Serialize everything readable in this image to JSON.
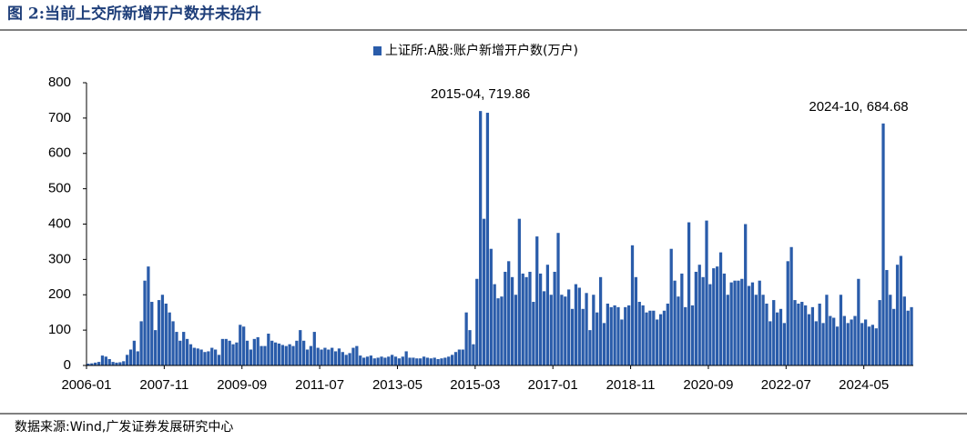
{
  "chart_data": {
    "type": "bar",
    "title": "图 2:当前上交所新增开户数并未抬升",
    "source": "数据来源:Wind,广发证券发展研究中心",
    "series": [
      {
        "name": "上证所:A股:账户新增开户数(万户)",
        "color": "#2a5caa",
        "values": [
          5,
          6,
          8,
          10,
          28,
          25,
          18,
          10,
          8,
          9,
          12,
          30,
          45,
          70,
          40,
          125,
          240,
          280,
          180,
          100,
          185,
          200,
          175,
          150,
          125,
          95,
          70,
          95,
          75,
          60,
          50,
          48,
          45,
          38,
          40,
          50,
          45,
          30,
          75,
          75,
          70,
          60,
          65,
          115,
          110,
          70,
          45,
          75,
          80,
          55,
          55,
          90,
          70,
          65,
          62,
          58,
          55,
          60,
          55,
          70,
          100,
          70,
          45,
          55,
          95,
          50,
          45,
          50,
          45,
          50,
          40,
          48,
          38,
          30,
          35,
          50,
          55,
          28,
          22,
          25,
          28,
          20,
          22,
          25,
          22,
          25,
          30,
          25,
          20,
          25,
          40,
          22,
          22,
          20,
          20,
          25,
          22,
          20,
          22,
          18,
          20,
          22,
          25,
          30,
          38,
          45,
          45,
          150,
          100,
          60,
          245,
          719.86,
          415,
          715,
          330,
          230,
          190,
          195,
          265,
          295,
          250,
          200,
          415,
          260,
          250,
          265,
          180,
          365,
          260,
          210,
          285,
          200,
          265,
          375,
          200,
          195,
          215,
          160,
          230,
          220,
          160,
          205,
          100,
          200,
          150,
          250,
          120,
          175,
          165,
          170,
          165,
          130,
          165,
          170,
          340,
          250,
          180,
          170,
          150,
          155,
          155,
          130,
          145,
          155,
          175,
          330,
          240,
          195,
          260,
          165,
          405,
          170,
          265,
          285,
          250,
          410,
          230,
          275,
          280,
          320,
          260,
          200,
          235,
          240,
          240,
          245,
          400,
          225,
          235,
          200,
          240,
          200,
          175,
          125,
          185,
          150,
          160,
          120,
          295,
          335,
          185,
          175,
          180,
          170,
          145,
          165,
          125,
          175,
          120,
          200,
          140,
          135,
          110,
          200,
          140,
          120,
          130,
          140,
          245,
          120,
          130,
          110,
          115,
          105,
          185,
          684.68,
          270,
          200,
          160,
          285,
          310,
          195,
          155,
          165
        ]
      }
    ],
    "categories": [
      "2006-01",
      null,
      null,
      null,
      null,
      null,
      null,
      null,
      null,
      null,
      null,
      null,
      null,
      null,
      null,
      null,
      null,
      null,
      null,
      null,
      null,
      null,
      "2007-11",
      null,
      null,
      null,
      null,
      null,
      null,
      null,
      null,
      null,
      null,
      null,
      null,
      null,
      null,
      null,
      null,
      null,
      null,
      null,
      null,
      null,
      "2009-09",
      null,
      null,
      null,
      null,
      null,
      null,
      null,
      null,
      null,
      null,
      null,
      null,
      null,
      null,
      null,
      null,
      null,
      null,
      null,
      null,
      null,
      "2011-07",
      null,
      null,
      null,
      null,
      null,
      null,
      null,
      null,
      null,
      null,
      null,
      null,
      null,
      null,
      null,
      null,
      null,
      null,
      null,
      null,
      null,
      "2013-05",
      null,
      null,
      null,
      null,
      null,
      null,
      null,
      null,
      null,
      null,
      null,
      null,
      null,
      null,
      null,
      null,
      null,
      null,
      null,
      null,
      null,
      "2015-03",
      null,
      null,
      null,
      null,
      null,
      null,
      null,
      null,
      null,
      null,
      null,
      null,
      null,
      null,
      null,
      null,
      null,
      null,
      null,
      null,
      null,
      "2017-01",
      null,
      null,
      null,
      null,
      null,
      null,
      null,
      null,
      null,
      null,
      null,
      null,
      null,
      null,
      null,
      null,
      null,
      null,
      null,
      null,
      null,
      "2018-11",
      null,
      null,
      null,
      null,
      null,
      null,
      null,
      null,
      null,
      null,
      null,
      null,
      null,
      null,
      null,
      null,
      null,
      null,
      null,
      null,
      null,
      "2020-09",
      null,
      null,
      null,
      null,
      null,
      null,
      null,
      null,
      null,
      null,
      null,
      null,
      null,
      null,
      null,
      null,
      null,
      null,
      null,
      null,
      null,
      "2022-07",
      null,
      null,
      null,
      null,
      null,
      null,
      null,
      null,
      null,
      null,
      null,
      null,
      null,
      null,
      null,
      null,
      null,
      null,
      null,
      null,
      null,
      "2024-05",
      null,
      null,
      null,
      null,
      null,
      null,
      null,
      null,
      null,
      null,
      null,
      null,
      null
    ],
    "annotations": [
      {
        "text": "2015-04, 719.86",
        "index": 111
      },
      {
        "text": "2024-10, 684.68",
        "index": 225
      }
    ],
    "ylim": [
      0,
      800
    ],
    "yticks": [
      0,
      100,
      200,
      300,
      400,
      500,
      600,
      700,
      800
    ],
    "legend": "top",
    "grid": false
  }
}
